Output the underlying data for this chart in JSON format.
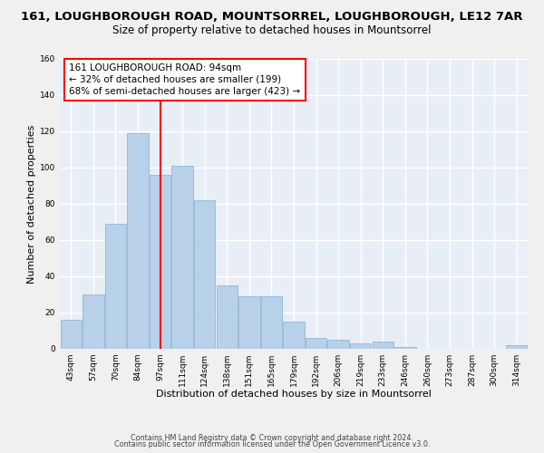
{
  "title_line1": "161, LOUGHBOROUGH ROAD, MOUNTSORREL, LOUGHBOROUGH, LE12 7AR",
  "title_line2": "Size of property relative to detached houses in Mountsorrel",
  "xlabel": "Distribution of detached houses by size in Mountsorrel",
  "ylabel": "Number of detached properties",
  "footer_line1": "Contains HM Land Registry data © Crown copyright and database right 2024.",
  "footer_line2": "Contains public sector information licensed under the Open Government Licence v3.0.",
  "bar_labels": [
    "43sqm",
    "57sqm",
    "70sqm",
    "84sqm",
    "97sqm",
    "111sqm",
    "124sqm",
    "138sqm",
    "151sqm",
    "165sqm",
    "179sqm",
    "192sqm",
    "206sqm",
    "219sqm",
    "233sqm",
    "246sqm",
    "260sqm",
    "273sqm",
    "287sqm",
    "300sqm",
    "314sqm"
  ],
  "bar_values": [
    16,
    30,
    69,
    119,
    96,
    101,
    82,
    35,
    29,
    29,
    15,
    6,
    5,
    3,
    4,
    1,
    0,
    0,
    0,
    0,
    2
  ],
  "bar_color": "#b8d0e8",
  "bar_edge_color": "#90b8d8",
  "vline_color": "red",
  "vline_bar_index": 4,
  "annotation_text": "161 LOUGHBOROUGH ROAD: 94sqm\n← 32% of detached houses are smaller (199)\n68% of semi-detached houses are larger (423) →",
  "annotation_box_color": "white",
  "annotation_box_edge": "red",
  "ylim": [
    0,
    160
  ],
  "yticks": [
    0,
    20,
    40,
    60,
    80,
    100,
    120,
    140,
    160
  ],
  "background_color": "#f0f0f0",
  "plot_bg_color": "#e8eef5",
  "grid_color": "white",
  "title_fontsize": 9.5,
  "subtitle_fontsize": 8.5,
  "axis_label_fontsize": 8,
  "tick_fontsize": 6.5,
  "annotation_fontsize": 7.5,
  "footer_fontsize": 5.8
}
